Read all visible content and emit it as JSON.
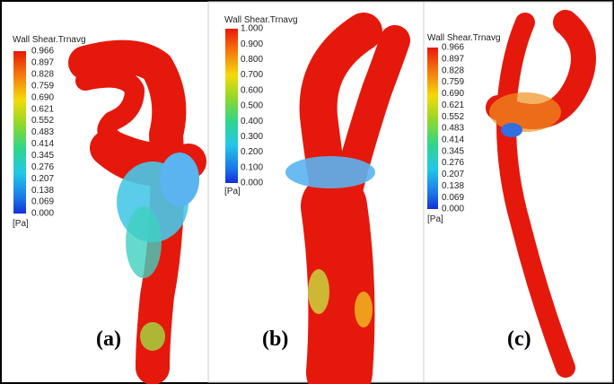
{
  "panels": [
    {
      "colorbar_title": "Wall Shear.Trnavg",
      "ticks": [
        "0.966",
        "0.897",
        "0.828",
        "0.759",
        "0.690",
        "0.621",
        "0.552",
        "0.483",
        "0.414",
        "0.345",
        "0.276",
        "0.207",
        "0.138",
        "0.069",
        "0.000"
      ],
      "unit": "[Pa]",
      "label": "(a)"
    },
    {
      "colorbar_title": "Wall Shear.Trnavg",
      "ticks": [
        "1.000",
        "0.900",
        "0.800",
        "0.700",
        "0.600",
        "0.500",
        "0.400",
        "0.300",
        "0.200",
        "0.100",
        "0.000"
      ],
      "unit": "[Pa]",
      "label": "(b)"
    },
    {
      "colorbar_title": "Wall Shear.Trnavg",
      "ticks": [
        "0.966",
        "0.897",
        "0.828",
        "0.759",
        "0.690",
        "0.621",
        "0.552",
        "0.483",
        "0.414",
        "0.345",
        "0.276",
        "0.207",
        "0.138",
        "0.069",
        "0.000"
      ],
      "unit": "[Pa]",
      "label": "(c)"
    }
  ]
}
